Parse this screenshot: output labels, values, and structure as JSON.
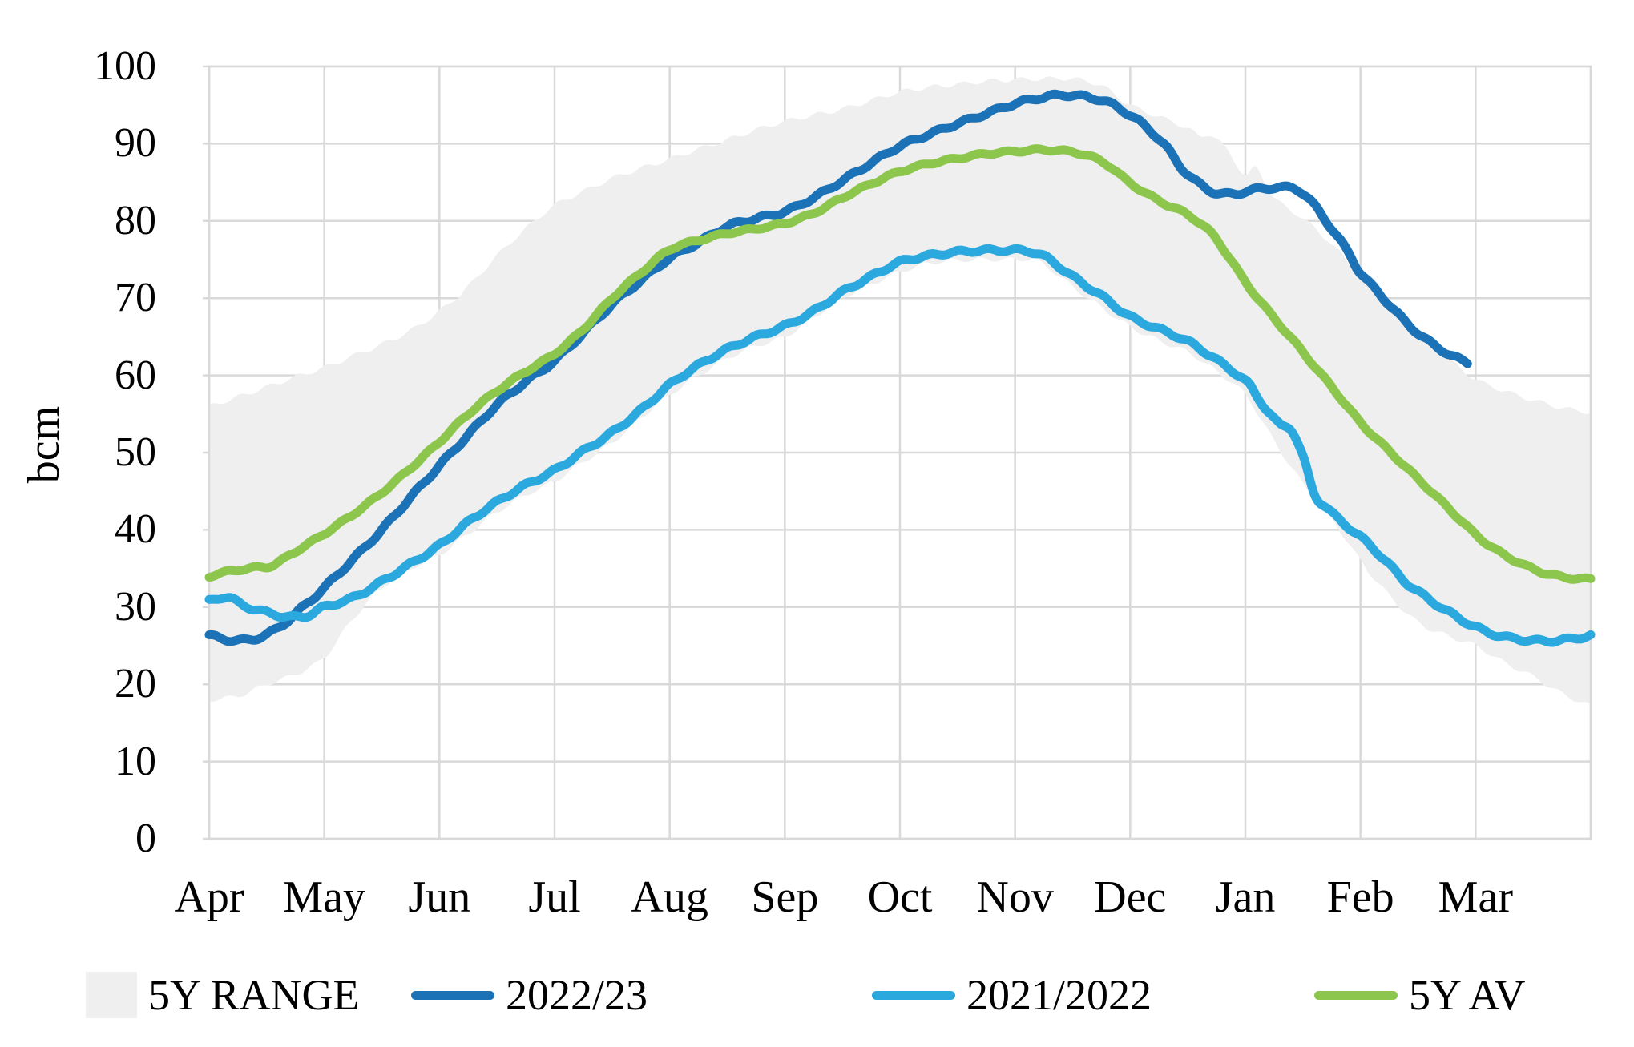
{
  "chart_data": {
    "type": "line",
    "title": "",
    "ylabel": "bcm",
    "ylim": [
      0,
      100
    ],
    "ytick_step": 10,
    "yticks": [
      "100",
      "90",
      "80",
      "70",
      "60",
      "50",
      "40",
      "30",
      "20",
      "10",
      "0"
    ],
    "xticklabels": [
      "Apr",
      "May",
      "Jun",
      "Jul",
      "Aug",
      "Sep",
      "Oct",
      "Nov",
      "Dec",
      "Jan",
      "Feb",
      "Mar"
    ],
    "x_unit": "months since 1 April (0-12)",
    "grid": true,
    "legend_position": "bottom",
    "colors": {
      "range_fill": "#efefef",
      "gridline": "#d9d9d9",
      "series_2022_23": "#1b72b6",
      "series_2021_2022": "#2ba9df",
      "series_5y_av": "#8dc64d",
      "text": "#000000"
    },
    "band": {
      "name": "5Y RANGE",
      "upper": [
        [
          0,
          56
        ],
        [
          0.25,
          57.2
        ],
        [
          0.5,
          58.5
        ],
        [
          0.75,
          59.8
        ],
        [
          1,
          61
        ],
        [
          1.25,
          62.5
        ],
        [
          1.5,
          64
        ],
        [
          1.75,
          65.8
        ],
        [
          2,
          68.3
        ],
        [
          2.25,
          71.5
        ],
        [
          2.5,
          75.5
        ],
        [
          2.75,
          79
        ],
        [
          3,
          82
        ],
        [
          3.25,
          83.8
        ],
        [
          3.5,
          85.5
        ],
        [
          3.75,
          86.8
        ],
        [
          4,
          88
        ],
        [
          4.25,
          89.3
        ],
        [
          4.5,
          90.5
        ],
        [
          4.75,
          91.8
        ],
        [
          5,
          92.9
        ],
        [
          5.25,
          93.7
        ],
        [
          5.5,
          94.5
        ],
        [
          5.75,
          95.6
        ],
        [
          6,
          96.7
        ],
        [
          6.25,
          97.3
        ],
        [
          6.5,
          97.7
        ],
        [
          6.75,
          98.1
        ],
        [
          7,
          98.3
        ],
        [
          7.2,
          98.4
        ],
        [
          7.5,
          98.4
        ],
        [
          7.75,
          97.5
        ],
        [
          8,
          95
        ],
        [
          8.25,
          93.5
        ],
        [
          8.5,
          92
        ],
        [
          8.6,
          90.9
        ],
        [
          8.7,
          91.2
        ],
        [
          8.85,
          89
        ],
        [
          9,
          85.9
        ],
        [
          9.1,
          86.8
        ],
        [
          9.25,
          83
        ],
        [
          9.5,
          80.3
        ],
        [
          9.75,
          77
        ],
        [
          10,
          72.8
        ],
        [
          10.25,
          68.8
        ],
        [
          10.5,
          64.8
        ],
        [
          10.75,
          62.2
        ],
        [
          11,
          59.5
        ],
        [
          11.25,
          58
        ],
        [
          11.5,
          56.8
        ],
        [
          11.75,
          55.8
        ],
        [
          12,
          55.2
        ]
      ],
      "lower": [
        [
          0,
          18
        ],
        [
          0.25,
          18.5
        ],
        [
          0.5,
          20
        ],
        [
          0.75,
          21.3
        ],
        [
          1,
          23.5
        ],
        [
          1.25,
          28.5
        ],
        [
          1.5,
          32.5
        ],
        [
          1.75,
          35
        ],
        [
          2,
          36.8
        ],
        [
          2.25,
          39.5
        ],
        [
          2.5,
          42.3
        ],
        [
          2.75,
          44.5
        ],
        [
          3,
          46.3
        ],
        [
          3.25,
          48.8
        ],
        [
          3.5,
          51.3
        ],
        [
          3.75,
          54.5
        ],
        [
          4,
          57.5
        ],
        [
          4.25,
          60
        ],
        [
          4.5,
          62.2
        ],
        [
          4.75,
          63.8
        ],
        [
          5,
          65
        ],
        [
          5.25,
          67.5
        ],
        [
          5.5,
          70
        ],
        [
          5.75,
          71.8
        ],
        [
          6,
          73.4
        ],
        [
          6.25,
          74.5
        ],
        [
          6.5,
          74.9
        ],
        [
          6.75,
          75
        ],
        [
          7,
          75
        ],
        [
          7.2,
          74.8
        ],
        [
          7.5,
          71.5
        ],
        [
          7.75,
          68.8
        ],
        [
          8,
          66.3
        ],
        [
          8.25,
          64.5
        ],
        [
          8.5,
          63
        ],
        [
          8.75,
          60.5
        ],
        [
          9,
          57.5
        ],
        [
          9.25,
          51.5
        ],
        [
          9.5,
          46
        ],
        [
          9.75,
          41.5
        ],
        [
          10,
          36
        ],
        [
          10.25,
          31.5
        ],
        [
          10.5,
          28
        ],
        [
          10.75,
          26.3
        ],
        [
          11,
          25
        ],
        [
          11.25,
          22.8
        ],
        [
          11.5,
          21
        ],
        [
          11.75,
          18.8
        ],
        [
          12,
          17.2
        ]
      ]
    },
    "series": [
      {
        "name": "2022/23",
        "color": "#1b72b6",
        "points": [
          [
            0,
            26.3
          ],
          [
            0.2,
            25.7
          ],
          [
            0.4,
            25.9
          ],
          [
            0.6,
            27.3
          ],
          [
            0.8,
            29.8
          ],
          [
            1,
            32.5
          ],
          [
            1.25,
            36.2
          ],
          [
            1.5,
            40
          ],
          [
            1.75,
            44.2
          ],
          [
            2,
            48.3
          ],
          [
            2.25,
            52.3
          ],
          [
            2.5,
            56.2
          ],
          [
            2.75,
            59.2
          ],
          [
            3,
            61.9
          ],
          [
            3.25,
            65.5
          ],
          [
            3.5,
            69.2
          ],
          [
            3.75,
            72.3
          ],
          [
            4,
            75.2
          ],
          [
            4.25,
            77.2
          ],
          [
            4.5,
            79.3
          ],
          [
            4.75,
            80.3
          ],
          [
            5,
            81.2
          ],
          [
            5.25,
            83
          ],
          [
            5.5,
            85.2
          ],
          [
            5.75,
            87.5
          ],
          [
            6,
            89.7
          ],
          [
            6.25,
            91.2
          ],
          [
            6.5,
            92.6
          ],
          [
            6.75,
            93.9
          ],
          [
            7,
            95.2
          ],
          [
            7.2,
            95.9
          ],
          [
            7.4,
            96.3
          ],
          [
            7.6,
            96.1
          ],
          [
            7.8,
            95.4
          ],
          [
            8,
            93.7
          ],
          [
            8.15,
            92
          ],
          [
            8.3,
            89.8
          ],
          [
            8.45,
            86.8
          ],
          [
            8.6,
            84.8
          ],
          [
            8.75,
            83.6
          ],
          [
            8.9,
            83.5
          ],
          [
            9,
            83.8
          ],
          [
            9.15,
            84.2
          ],
          [
            9.3,
            84.3
          ],
          [
            9.45,
            84.1
          ],
          [
            9.6,
            82
          ],
          [
            9.75,
            79
          ],
          [
            9.9,
            75.8
          ],
          [
            10,
            73.3
          ],
          [
            10.2,
            70
          ],
          [
            10.4,
            66.8
          ],
          [
            10.6,
            64.3
          ],
          [
            10.8,
            62.5
          ],
          [
            10.93,
            61.6
          ]
        ]
      },
      {
        "name": "2021/2022",
        "color": "#2ba9df",
        "points": [
          [
            0,
            30.8
          ],
          [
            0.15,
            31.3
          ],
          [
            0.3,
            30.2
          ],
          [
            0.5,
            29.3
          ],
          [
            0.7,
            28.7
          ],
          [
            0.85,
            28.9
          ],
          [
            1,
            30
          ],
          [
            1.25,
            31.2
          ],
          [
            1.5,
            33.3
          ],
          [
            1.75,
            35.6
          ],
          [
            2,
            38
          ],
          [
            2.25,
            41
          ],
          [
            2.5,
            43.6
          ],
          [
            2.75,
            45.8
          ],
          [
            3,
            47.7
          ],
          [
            3.25,
            50.2
          ],
          [
            3.5,
            52.6
          ],
          [
            3.75,
            55.5
          ],
          [
            4,
            58.8
          ],
          [
            4.25,
            61.3
          ],
          [
            4.5,
            63.4
          ],
          [
            4.75,
            65
          ],
          [
            5,
            66.4
          ],
          [
            5.25,
            68.3
          ],
          [
            5.5,
            70.8
          ],
          [
            5.75,
            72.8
          ],
          [
            6,
            74.7
          ],
          [
            6.25,
            75.5
          ],
          [
            6.5,
            76
          ],
          [
            6.75,
            76.2
          ],
          [
            7,
            76.2
          ],
          [
            7.15,
            76
          ],
          [
            7.3,
            75
          ],
          [
            7.5,
            72.8
          ],
          [
            7.75,
            70.3
          ],
          [
            8,
            67.6
          ],
          [
            8.25,
            66
          ],
          [
            8.5,
            64.4
          ],
          [
            8.75,
            62
          ],
          [
            9,
            59.3
          ],
          [
            9.1,
            57.3
          ],
          [
            9.2,
            55.3
          ],
          [
            9.3,
            53.6
          ],
          [
            9.4,
            53
          ],
          [
            9.5,
            49.5
          ],
          [
            9.6,
            44.6
          ],
          [
            9.7,
            43
          ],
          [
            9.8,
            41.5
          ],
          [
            9.9,
            40.3
          ],
          [
            10,
            39.1
          ],
          [
            10.2,
            36.3
          ],
          [
            10.36,
            33.7
          ],
          [
            10.5,
            32
          ],
          [
            10.75,
            29.5
          ],
          [
            11,
            27.4
          ],
          [
            11.2,
            26.3
          ],
          [
            11.4,
            25.8
          ],
          [
            11.6,
            25.6
          ],
          [
            11.8,
            25.8
          ],
          [
            12,
            26.3
          ]
        ]
      },
      {
        "name": "5Y AV",
        "color": "#8dc64d",
        "points": [
          [
            0,
            34
          ],
          [
            0.2,
            34.7
          ],
          [
            0.4,
            35.1
          ],
          [
            0.55,
            35.4
          ],
          [
            0.75,
            37.2
          ],
          [
            1,
            39.5
          ],
          [
            1.25,
            42
          ],
          [
            1.5,
            44.8
          ],
          [
            1.75,
            48
          ],
          [
            2,
            51.4
          ],
          [
            2.25,
            55
          ],
          [
            2.5,
            58
          ],
          [
            2.75,
            60.5
          ],
          [
            3,
            62.8
          ],
          [
            3.25,
            66
          ],
          [
            3.5,
            70
          ],
          [
            3.75,
            73.3
          ],
          [
            4,
            76.3
          ],
          [
            4.25,
            77.5
          ],
          [
            4.5,
            78.4
          ],
          [
            4.75,
            79
          ],
          [
            5,
            79.7
          ],
          [
            5.25,
            81
          ],
          [
            5.5,
            83
          ],
          [
            5.75,
            84.8
          ],
          [
            6,
            86.4
          ],
          [
            6.25,
            87.4
          ],
          [
            6.5,
            88.1
          ],
          [
            6.75,
            88.7
          ],
          [
            7,
            89
          ],
          [
            7.2,
            89.2
          ],
          [
            7.4,
            89.1
          ],
          [
            7.6,
            88.6
          ],
          [
            7.8,
            87.3
          ],
          [
            8,
            84.9
          ],
          [
            8.25,
            82.6
          ],
          [
            8.5,
            80.8
          ],
          [
            8.7,
            78.5
          ],
          [
            8.85,
            75.5
          ],
          [
            9,
            72.1
          ],
          [
            9.2,
            68.3
          ],
          [
            9.4,
            64.8
          ],
          [
            9.6,
            61.2
          ],
          [
            9.8,
            57.6
          ],
          [
            10,
            53.9
          ],
          [
            10.25,
            50.2
          ],
          [
            10.5,
            46.6
          ],
          [
            10.75,
            43
          ],
          [
            11,
            39.4
          ],
          [
            11.2,
            37.2
          ],
          [
            11.4,
            35.6
          ],
          [
            11.6,
            34.4
          ],
          [
            11.8,
            33.8
          ],
          [
            12,
            33.6
          ]
        ]
      }
    ],
    "legend": [
      {
        "label": "5Y RANGE",
        "swatch": "band",
        "color": "#efefef"
      },
      {
        "label": "2022/23",
        "swatch": "line",
        "color": "#1b72b6"
      },
      {
        "label": "2021/2022",
        "swatch": "line",
        "color": "#2ba9df"
      },
      {
        "label": "5Y AV",
        "swatch": "line",
        "color": "#8dc64d"
      }
    ]
  }
}
